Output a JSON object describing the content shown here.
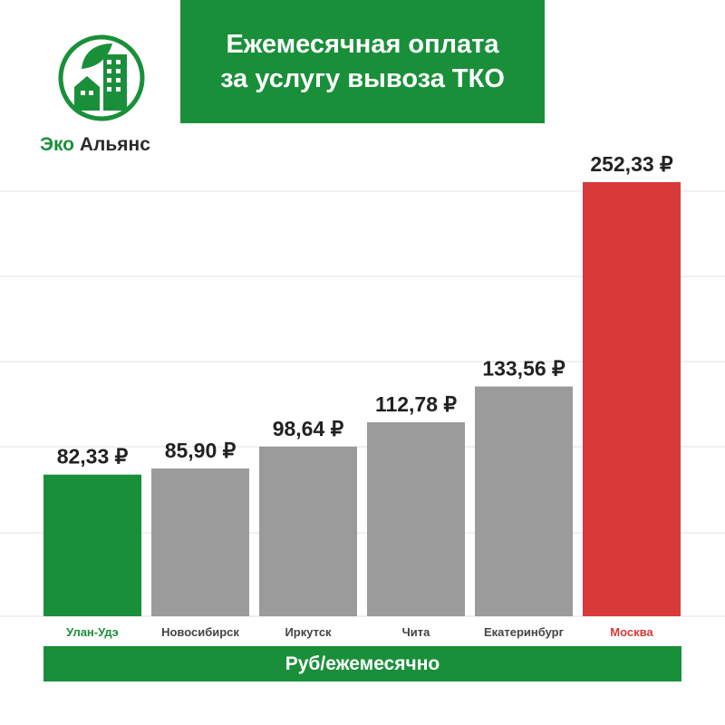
{
  "brand": {
    "word1": "Эко",
    "word2": "Альянс",
    "green_color": "#1a8f3a",
    "icon": "eco-building-leaf-icon"
  },
  "title": {
    "line1": "Ежемесячная оплата",
    "line2": "за услугу вывоза ТКО"
  },
  "footer": {
    "label": "Руб/ежемесячно"
  },
  "colors": {
    "green": "#1a8f3a",
    "gray": "#9b9b9b",
    "red": "#d83a3a",
    "grid": "#e0e0e0"
  },
  "chart_data": {
    "type": "bar",
    "title": "Ежемесячная оплата за услугу вывоза ТКО",
    "xlabel": "Руб/ежемесячно",
    "ylabel": "",
    "grid": true,
    "ylim": [
      0,
      252.33
    ],
    "categories": [
      "Улан-Удэ",
      "Новосибирск",
      "Иркутск",
      "Чита",
      "Екатеринбург",
      "Москва"
    ],
    "values": [
      82.33,
      85.9,
      98.64,
      112.78,
      133.56,
      252.33
    ],
    "labels": [
      "82,33 ₽",
      "85,90 ₽",
      "98,64 ₽",
      "112,78 ₽",
      "133,56 ₽",
      "252,33 ₽"
    ],
    "bar_colors": [
      "#1a8f3a",
      "#9b9b9b",
      "#9b9b9b",
      "#9b9b9b",
      "#9b9b9b",
      "#d83a3a"
    ],
    "category_colors": [
      "#1a8f3a",
      "#444444",
      "#444444",
      "#444444",
      "#444444",
      "#d83a3a"
    ]
  }
}
